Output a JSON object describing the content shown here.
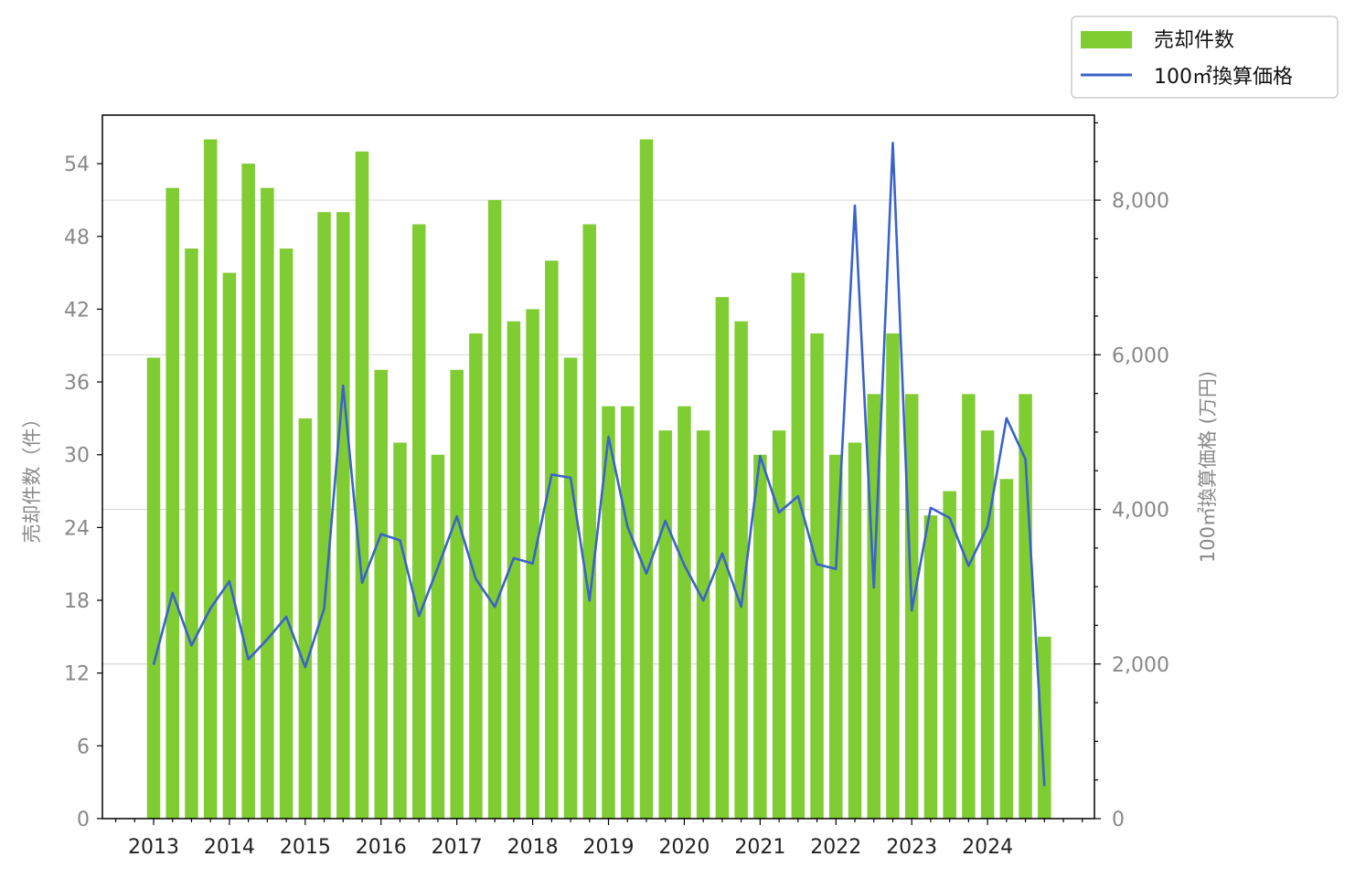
{
  "chart_data": {
    "type": "bar+line",
    "title": "",
    "x_tick_labels": [
      "2013",
      "2014",
      "2015",
      "2016",
      "2017",
      "2018",
      "2019",
      "2020",
      "2021",
      "2022",
      "2023",
      "2024"
    ],
    "quarters_per_year": 4,
    "y_left": {
      "label": "売却件数（件）",
      "lim": [
        0,
        58
      ],
      "ticks": [
        0,
        6,
        12,
        18,
        24,
        30,
        36,
        42,
        48,
        54
      ],
      "tick_labels": [
        "0",
        "6",
        "12",
        "18",
        "24",
        "30",
        "36",
        "42",
        "48",
        "54"
      ]
    },
    "y_right": {
      "label": "100㎡換算価格 (万円)",
      "lim": [
        0,
        9100
      ],
      "ticks": [
        0,
        2000,
        4000,
        6000,
        8000
      ],
      "tick_labels": [
        "0",
        "2,000",
        "4,000",
        "6,000",
        "8,000"
      ]
    },
    "grid": "horizontal-right-axis",
    "legend": {
      "placement": "top-right-outside",
      "entries": [
        "売却件数",
        "100㎡換算価格"
      ]
    },
    "series": [
      {
        "name": "売却件数",
        "kind": "bar",
        "axis": "left",
        "color": "#7fcc33",
        "values": [
          38,
          52,
          47,
          56,
          45,
          54,
          52,
          47,
          33,
          50,
          50,
          55,
          37,
          31,
          49,
          30,
          37,
          40,
          51,
          41,
          42,
          46,
          38,
          49,
          34,
          34,
          56,
          32,
          34,
          32,
          43,
          41,
          30,
          32,
          45,
          40,
          30,
          31,
          35,
          40,
          35,
          25,
          27,
          35,
          32,
          28,
          35,
          15
        ]
      },
      {
        "name": "100㎡換算価格",
        "kind": "line",
        "axis": "right",
        "color": "#3a63c9",
        "values": [
          1990,
          2920,
          2240,
          2720,
          3070,
          2060,
          2320,
          2610,
          1960,
          2720,
          5600,
          3050,
          3680,
          3600,
          2620,
          3250,
          3910,
          3100,
          2740,
          3370,
          3300,
          4450,
          4410,
          2820,
          4940,
          3780,
          3170,
          3850,
          3280,
          2820,
          3430,
          2740,
          4690,
          3960,
          4170,
          3290,
          3230,
          7930,
          2990,
          8740,
          2690,
          4020,
          3890,
          3270,
          3780,
          5180,
          4650,
          420
        ]
      }
    ]
  }
}
